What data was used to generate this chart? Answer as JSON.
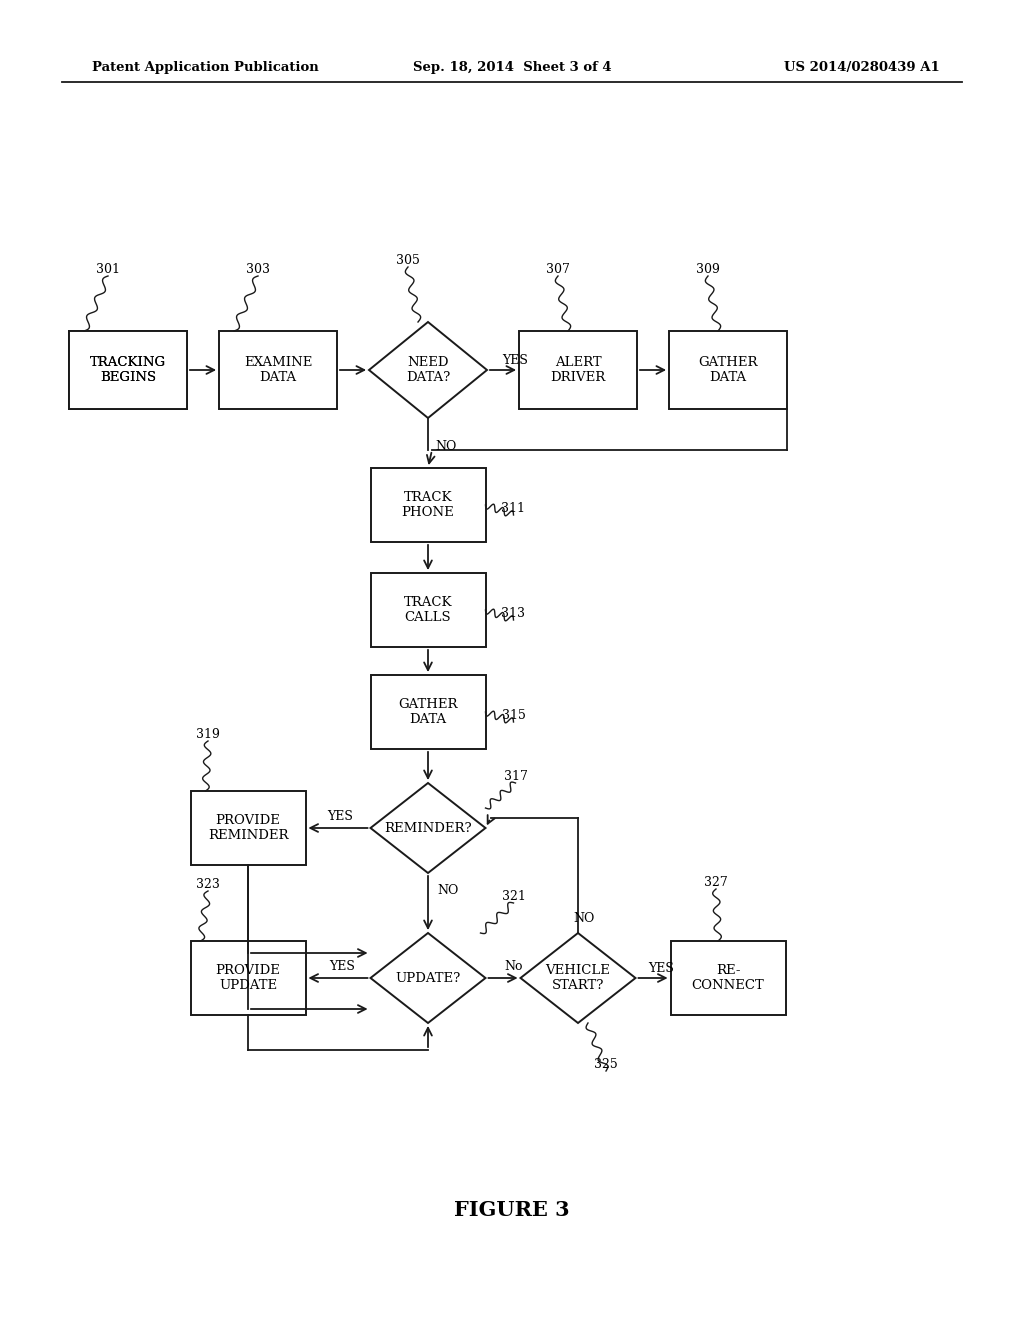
{
  "background_color": "#ffffff",
  "header_left": "Patent Application Publication",
  "header_center": "Sep. 18, 2014  Sheet 3 of 4",
  "header_right": "US 2014/0280439 A1",
  "figure_label": "FIGURE 3"
}
